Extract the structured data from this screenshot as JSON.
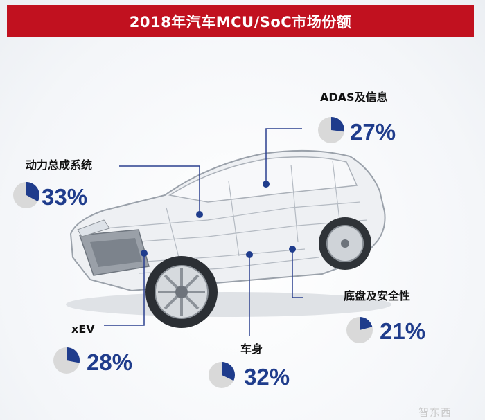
{
  "title": "2018年汽车MCU/SoC市场份额",
  "colors": {
    "title_bg": "#c1111f",
    "accent": "#1f3c8c",
    "pie_bg": "#d9d9d9"
  },
  "watermark": "智东西",
  "chart_data": {
    "type": "pie",
    "title": "2018年汽车MCU/SoC市场份额",
    "segments": [
      {
        "label": "ADAS及信息",
        "value": 27,
        "display": "27%"
      },
      {
        "label": "动力总成系统",
        "value": 33,
        "display": "33%"
      },
      {
        "label": "xEV",
        "value": 28,
        "display": "28%"
      },
      {
        "label": "车身",
        "value": 32,
        "display": "32%"
      },
      {
        "label": "底盘及安全性",
        "value": 21,
        "display": "21%"
      }
    ]
  }
}
